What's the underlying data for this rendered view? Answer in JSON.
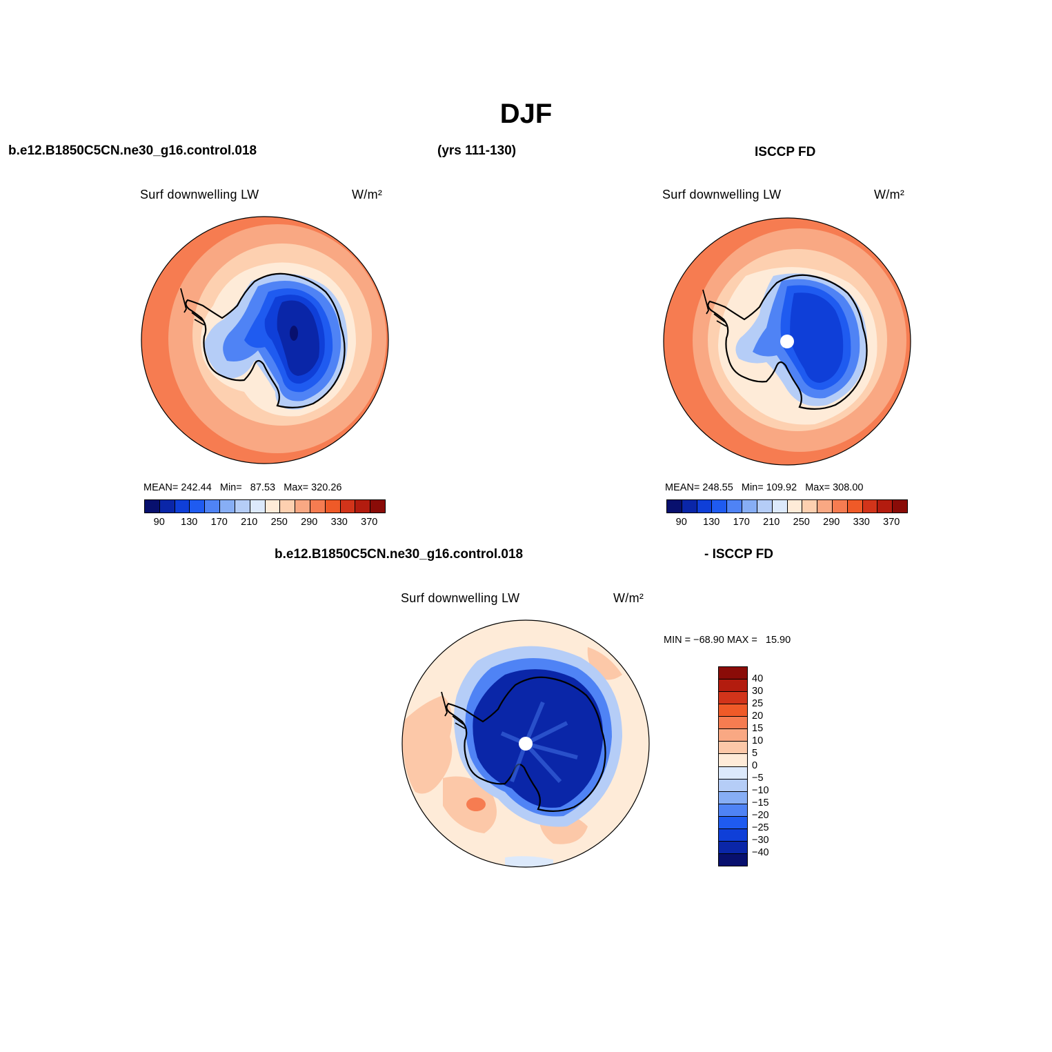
{
  "title": "DJF",
  "header_left": "b.e12.B1850C5CN.ne30_g16.control.018",
  "header_years": "(yrs 111-130)",
  "header_right": "ISCCP FD",
  "diff_header_left": "b.e12.B1850C5CN.ne30_g16.control.018",
  "diff_header_right": "- ISCCP FD",
  "panels": [
    {
      "variable": "Surf downwelling LW",
      "units": "W/m²",
      "mean_label": "MEAN=",
      "mean": "242.44",
      "min_label": "Min=",
      "min": "87.53",
      "max_label": "Max=",
      "max": "320.26",
      "pole_hole": false
    },
    {
      "variable": "Surf downwelling LW",
      "units": "W/m²",
      "mean_label": "MEAN=",
      "mean": "248.55",
      "min_label": "Min=",
      "min": "109.92",
      "max_label": "Max=",
      "max": "308.00",
      "pole_hole": true
    }
  ],
  "diff_panel": {
    "variable": "Surf downwelling LW",
    "units": "W/m²",
    "minmax_text": "MIN = −68.90 MAX =   15.90"
  },
  "colorbar_abs": {
    "ticks": [
      "90",
      "130",
      "170",
      "210",
      "250",
      "290",
      "330",
      "370"
    ],
    "colors": [
      "#08106e",
      "#0a26a8",
      "#0f3fd8",
      "#1f5bf0",
      "#4f83f5",
      "#87aef5",
      "#b5cdf7",
      "#dce9fb",
      "#feebd8",
      "#fdd0b0",
      "#f9a883",
      "#f67c51",
      "#ef5a28",
      "#d2341a",
      "#b31c0f",
      "#8a0c08"
    ]
  },
  "colorbar_diff": {
    "labels": [
      "40",
      "30",
      "25",
      "20",
      "15",
      "10",
      "5",
      "0",
      "−5",
      "−10",
      "−15",
      "−20",
      "−25",
      "−30",
      "−40"
    ],
    "colors": [
      "#8a0c08",
      "#b31c0f",
      "#d2341a",
      "#ef5a28",
      "#f67c51",
      "#f9a883",
      "#fcc8a8",
      "#feebd8",
      "#dce9fb",
      "#b5cdf7",
      "#87aef5",
      "#4f83f5",
      "#1f5bf0",
      "#0f3fd8",
      "#0a26a8",
      "#08106e"
    ]
  },
  "map_colors": {
    "ocean_outer": "#f67c51",
    "ocean_mid": "#f9a883",
    "ocean_inner": "#fdd0b0",
    "ice_edge": "#feebd8",
    "land_1": "#b5cdf7",
    "land_2": "#4f83f5",
    "land_3": "#1f5bf0",
    "land_4": "#0f3fd8",
    "land_5": "#0a26a8",
    "diff_bg": "#feebd8",
    "diff_warm": "#fcc8a8",
    "diff_land": "#0a26a8"
  }
}
